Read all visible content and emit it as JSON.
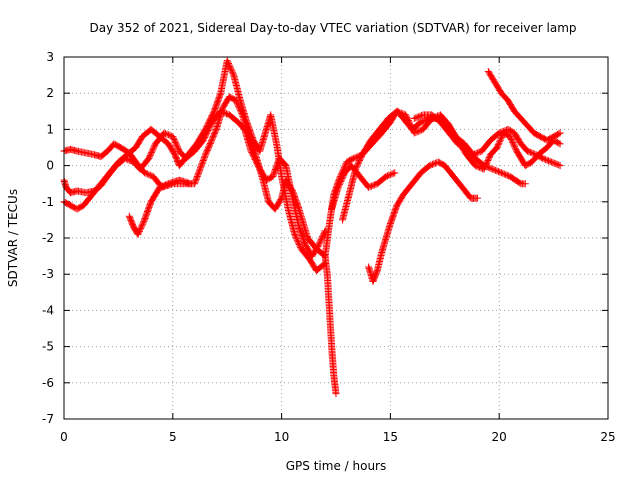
{
  "chart_data": {
    "type": "scatter",
    "title": "Day 352 of 2021, Sidereal Day-to-day VTEC variation (SDTVAR) for receiver lamp",
    "xlabel": "GPS time / hours",
    "ylabel": "SDTVAR / TECUs",
    "xlim": [
      0,
      25
    ],
    "ylim": [
      -7,
      3
    ],
    "xticks": [
      "0",
      "5",
      "10",
      "15",
      "20",
      "25"
    ],
    "yticks": [
      "-7",
      "-6",
      "-5",
      "-4",
      "-3",
      "-2",
      "-1",
      "0",
      "1",
      "2",
      "3"
    ],
    "grid": true,
    "marker": "+",
    "color": "#ff0000",
    "series": [
      {
        "points": [
          [
            0,
            -0.4
          ],
          [
            0.1,
            -0.6
          ],
          [
            0.3,
            -0.75
          ],
          [
            0.6,
            -0.7
          ],
          [
            1.0,
            -0.75
          ],
          [
            1.4,
            -0.7
          ],
          [
            1.7,
            -0.55
          ],
          [
            2.0,
            -0.3
          ],
          [
            2.4,
            0.0
          ],
          [
            2.8,
            0.2
          ],
          [
            3.2,
            0.1
          ],
          [
            3.5,
            -0.1
          ],
          [
            3.9,
            0.2
          ],
          [
            4.2,
            0.6
          ],
          [
            4.6,
            0.9
          ],
          [
            5.0,
            0.8
          ],
          [
            5.3,
            0.4
          ],
          [
            5.6,
            0.2
          ],
          [
            6.0,
            0.4
          ],
          [
            6.4,
            0.7
          ],
          [
            6.8,
            1.2
          ],
          [
            7.2,
            1.5
          ],
          [
            7.6,
            1.4
          ],
          [
            8.0,
            1.2
          ],
          [
            8.3,
            1.0
          ],
          [
            8.6,
            0.4
          ],
          [
            9.0,
            -0.1
          ],
          [
            9.3,
            -0.4
          ],
          [
            9.6,
            -0.3
          ],
          [
            9.9,
            0.2
          ],
          [
            10.2,
            0.0
          ],
          [
            10.5,
            -0.9
          ],
          [
            10.8,
            -1.7
          ],
          [
            11.1,
            -2.2
          ],
          [
            11.4,
            -2.5
          ],
          [
            11.7,
            -2.2
          ],
          [
            12.0,
            -1.8
          ]
        ]
      },
      {
        "points": [
          [
            0,
            0.4
          ],
          [
            0.3,
            0.45
          ],
          [
            0.6,
            0.4
          ],
          [
            1.0,
            0.35
          ],
          [
            1.4,
            0.3
          ],
          [
            1.7,
            0.25
          ],
          [
            2.0,
            0.4
          ],
          [
            2.3,
            0.6
          ],
          [
            2.6,
            0.5
          ],
          [
            3.0,
            0.35
          ],
          [
            3.3,
            0.1
          ],
          [
            3.7,
            -0.2
          ],
          [
            4.1,
            -0.3
          ],
          [
            4.5,
            -0.6
          ],
          [
            5.0,
            -0.5
          ],
          [
            5.5,
            -0.5
          ],
          [
            6.0,
            -0.5
          ],
          [
            6.5,
            0.3
          ],
          [
            7.0,
            1.0
          ],
          [
            7.3,
            1.6
          ],
          [
            7.6,
            1.9
          ],
          [
            7.9,
            1.8
          ],
          [
            8.2,
            1.4
          ],
          [
            8.5,
            0.8
          ],
          [
            8.8,
            0.3
          ],
          [
            9.1,
            -0.3
          ],
          [
            9.4,
            -1.0
          ],
          [
            9.7,
            -1.2
          ],
          [
            10.0,
            -0.9
          ],
          [
            10.2,
            -0.4
          ],
          [
            10.5,
            -0.7
          ],
          [
            10.8,
            -1.2
          ],
          [
            11.2,
            -2.0
          ],
          [
            11.6,
            -2.3
          ],
          [
            12.0,
            -2.5
          ],
          [
            12.1,
            -3.0
          ],
          [
            12.2,
            -4.0
          ],
          [
            12.3,
            -5.0
          ],
          [
            12.4,
            -5.8
          ],
          [
            12.5,
            -6.3
          ]
        ]
      },
      {
        "points": [
          [
            0,
            -1.0
          ],
          [
            0.3,
            -1.1
          ],
          [
            0.6,
            -1.2
          ],
          [
            0.9,
            -1.1
          ],
          [
            1.3,
            -0.8
          ],
          [
            1.7,
            -0.5
          ],
          [
            2.1,
            -0.2
          ],
          [
            2.5,
            0.1
          ],
          [
            2.9,
            0.3
          ],
          [
            3.3,
            0.5
          ],
          [
            3.6,
            0.8
          ],
          [
            4.0,
            1.0
          ],
          [
            4.4,
            0.8
          ],
          [
            4.8,
            0.6
          ],
          [
            5.1,
            0.3
          ],
          [
            5.3,
            0.0
          ],
          [
            5.7,
            0.3
          ],
          [
            6.1,
            0.6
          ],
          [
            6.5,
            1.0
          ],
          [
            6.9,
            1.5
          ],
          [
            7.2,
            2.0
          ],
          [
            7.5,
            2.9
          ],
          [
            7.8,
            2.5
          ],
          [
            8.1,
            1.8
          ],
          [
            8.4,
            1.2
          ],
          [
            8.7,
            0.7
          ],
          [
            9.0,
            0.4
          ],
          [
            9.3,
            1.0
          ],
          [
            9.5,
            1.4
          ],
          [
            9.8,
            0.5
          ],
          [
            10.0,
            -0.3
          ],
          [
            10.3,
            -1.2
          ],
          [
            10.6,
            -1.9
          ],
          [
            10.9,
            -2.3
          ],
          [
            11.3,
            -2.6
          ],
          [
            11.6,
            -2.9
          ],
          [
            12.0,
            -2.7
          ]
        ]
      },
      {
        "points": [
          [
            3.0,
            -1.4
          ],
          [
            3.2,
            -1.7
          ],
          [
            3.4,
            -1.9
          ],
          [
            3.7,
            -1.5
          ],
          [
            4.0,
            -1.0
          ],
          [
            4.4,
            -0.6
          ],
          [
            4.8,
            -0.5
          ],
          [
            5.3,
            -0.4
          ],
          [
            5.8,
            -0.5
          ]
        ]
      },
      {
        "points": [
          [
            12.0,
            -2.5
          ],
          [
            12.2,
            -1.6
          ],
          [
            12.4,
            -0.8
          ],
          [
            12.7,
            -0.3
          ],
          [
            13.0,
            0.1
          ],
          [
            13.3,
            0.2
          ],
          [
            13.7,
            0.3
          ],
          [
            14.0,
            0.5
          ],
          [
            14.3,
            0.7
          ],
          [
            14.6,
            0.9
          ],
          [
            15.0,
            1.2
          ],
          [
            15.3,
            1.5
          ],
          [
            15.6,
            1.3
          ],
          [
            16.0,
            1.0
          ],
          [
            16.4,
            1.2
          ],
          [
            16.8,
            1.3
          ],
          [
            17.2,
            1.3
          ],
          [
            17.6,
            1.2
          ],
          [
            18.0,
            0.8
          ],
          [
            18.4,
            0.6
          ],
          [
            18.8,
            0.3
          ],
          [
            19.2,
            0.4
          ],
          [
            19.6,
            0.7
          ],
          [
            20.0,
            0.9
          ],
          [
            20.4,
            1.0
          ],
          [
            20.7,
            0.9
          ],
          [
            21.0,
            0.6
          ],
          [
            21.3,
            0.4
          ],
          [
            21.7,
            0.3
          ],
          [
            22.0,
            0.2
          ],
          [
            22.4,
            0.1
          ],
          [
            22.8,
            0.0
          ]
        ]
      },
      {
        "points": [
          [
            12.3,
            -1.2
          ],
          [
            12.6,
            -0.6
          ],
          [
            12.9,
            -0.2
          ],
          [
            13.2,
            0.0
          ],
          [
            13.6,
            -0.3
          ],
          [
            14.0,
            -0.6
          ],
          [
            14.4,
            -0.5
          ],
          [
            14.8,
            -0.3
          ],
          [
            15.2,
            -0.2
          ]
        ]
      },
      {
        "points": [
          [
            12.8,
            -1.5
          ],
          [
            13.1,
            -0.8
          ],
          [
            13.4,
            -0.1
          ],
          [
            13.7,
            0.3
          ],
          [
            14.1,
            0.7
          ],
          [
            14.5,
            1.0
          ],
          [
            14.9,
            1.3
          ],
          [
            15.3,
            1.5
          ],
          [
            15.7,
            1.4
          ],
          [
            16.1,
            0.9
          ],
          [
            16.5,
            1.0
          ],
          [
            16.9,
            1.3
          ],
          [
            17.3,
            1.4
          ],
          [
            17.7,
            1.1
          ],
          [
            18.1,
            0.7
          ],
          [
            18.5,
            0.3
          ],
          [
            18.9,
            0.0
          ],
          [
            19.3,
            -0.1
          ],
          [
            19.6,
            0.3
          ],
          [
            19.9,
            0.5
          ],
          [
            20.2,
            0.9
          ],
          [
            20.5,
            0.8
          ],
          [
            20.8,
            0.4
          ],
          [
            21.2,
            0.0
          ],
          [
            21.5,
            0.1
          ],
          [
            21.8,
            0.3
          ],
          [
            22.2,
            0.5
          ],
          [
            22.5,
            0.7
          ],
          [
            22.8,
            0.6
          ]
        ]
      },
      {
        "points": [
          [
            14.0,
            -2.8
          ],
          [
            14.2,
            -3.2
          ],
          [
            14.4,
            -2.9
          ],
          [
            14.6,
            -2.4
          ],
          [
            14.8,
            -2.0
          ],
          [
            15.0,
            -1.6
          ],
          [
            15.3,
            -1.1
          ],
          [
            15.6,
            -0.8
          ],
          [
            16.0,
            -0.5
          ],
          [
            16.4,
            -0.2
          ],
          [
            16.8,
            0.0
          ],
          [
            17.2,
            0.1
          ],
          [
            17.5,
            0.0
          ],
          [
            17.9,
            -0.3
          ],
          [
            18.3,
            -0.6
          ],
          [
            18.7,
            -0.9
          ],
          [
            19.0,
            -0.9
          ]
        ]
      },
      {
        "points": [
          [
            16.1,
            1.3
          ],
          [
            16.5,
            1.4
          ],
          [
            16.9,
            1.4
          ],
          [
            17.3,
            1.2
          ],
          [
            17.7,
            0.9
          ],
          [
            18.1,
            0.6
          ],
          [
            18.5,
            0.5
          ],
          [
            18.9,
            0.2
          ],
          [
            19.3,
            0.0
          ],
          [
            19.7,
            -0.1
          ],
          [
            20.1,
            -0.2
          ],
          [
            20.5,
            -0.3
          ],
          [
            21.0,
            -0.5
          ],
          [
            21.2,
            -0.5
          ]
        ]
      },
      {
        "points": [
          [
            19.5,
            2.6
          ],
          [
            19.8,
            2.3
          ],
          [
            20.1,
            2.0
          ],
          [
            20.4,
            1.8
          ],
          [
            20.7,
            1.5
          ],
          [
            21.0,
            1.3
          ],
          [
            21.3,
            1.1
          ],
          [
            21.6,
            0.9
          ],
          [
            21.9,
            0.8
          ],
          [
            22.2,
            0.7
          ],
          [
            22.5,
            0.8
          ],
          [
            22.8,
            0.9
          ]
        ]
      }
    ]
  }
}
